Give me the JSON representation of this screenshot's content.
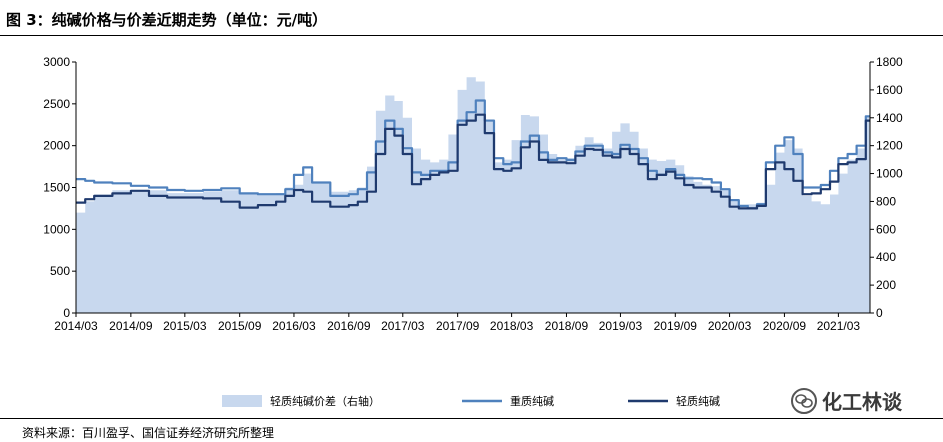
{
  "header": {
    "title": "图 3：纯碱价格与价差近期走势（单位：元/吨）"
  },
  "footer": {
    "source": "资料来源：百川盈孚、国信证券经济研究所整理"
  },
  "watermark": {
    "text": "化工林谈"
  },
  "colors": {
    "spread": "#c8d8ee",
    "heavy": "#4f81bd",
    "light": "#1f3a6e"
  },
  "chart_data": {
    "type": "line",
    "title": "纯碱价格与价差近期走势",
    "unit": "元/吨",
    "left_axis": {
      "ylim": [
        0,
        3000
      ],
      "ticks": [
        0,
        500,
        1000,
        1500,
        2000,
        2500,
        3000
      ]
    },
    "right_axis": {
      "ylim": [
        0,
        1800
      ],
      "ticks": [
        0,
        200,
        400,
        600,
        800,
        1000,
        1200,
        1400,
        1600,
        1800
      ]
    },
    "x_tick_labels": [
      "2014/03",
      "2014/09",
      "2015/03",
      "2015/09",
      "2016/03",
      "2016/09",
      "2017/03",
      "2017/09",
      "2018/03",
      "2018/09",
      "2019/03",
      "2019/09",
      "2020/03",
      "2020/09",
      "2021/03"
    ],
    "legend_position": "bottom",
    "series": [
      {
        "name": "轻质纯碱价差（右轴）",
        "kind": "area",
        "axis": "right",
        "color": "#c8d8ee",
        "x": [
          "2014-03",
          "2014-04",
          "2014-05",
          "2014-07",
          "2014-09",
          "2014-11",
          "2015-01",
          "2015-03",
          "2015-05",
          "2015-07",
          "2015-09",
          "2015-11",
          "2016-01",
          "2016-02",
          "2016-03",
          "2016-04",
          "2016-05",
          "2016-07",
          "2016-09",
          "2016-10",
          "2016-11",
          "2016-12",
          "2017-01",
          "2017-02",
          "2017-03",
          "2017-04",
          "2017-05",
          "2017-06",
          "2017-07",
          "2017-08",
          "2017-09",
          "2017-10",
          "2017-11",
          "2017-12",
          "2018-01",
          "2018-02",
          "2018-03",
          "2018-04",
          "2018-05",
          "2018-06",
          "2018-07",
          "2018-08",
          "2018-09",
          "2018-10",
          "2018-11",
          "2018-12",
          "2019-01",
          "2019-02",
          "2019-03",
          "2019-04",
          "2019-05",
          "2019-06",
          "2019-07",
          "2019-08",
          "2019-09",
          "2019-10",
          "2019-11",
          "2019-12",
          "2020-01",
          "2020-02",
          "2020-03",
          "2020-04",
          "2020-05",
          "2020-06",
          "2020-07",
          "2020-08",
          "2020-09",
          "2020-10",
          "2020-11",
          "2020-12",
          "2021-01",
          "2021-02",
          "2021-03",
          "2021-04",
          "2021-05",
          "2021-06"
        ],
        "values": [
          720,
          800,
          850,
          880,
          870,
          880,
          860,
          860,
          870,
          880,
          850,
          850,
          860,
          900,
          920,
          1000,
          940,
          870,
          880,
          900,
          1050,
          1450,
          1560,
          1520,
          1400,
          1180,
          1100,
          1080,
          1100,
          1280,
          1600,
          1690,
          1660,
          1370,
          1080,
          1100,
          1240,
          1420,
          1410,
          1280,
          1140,
          1100,
          1110,
          1200,
          1260,
          1220,
          1180,
          1300,
          1360,
          1300,
          1180,
          1100,
          1090,
          1100,
          1060,
          980,
          940,
          920,
          910,
          880,
          800,
          770,
          780,
          790,
          920,
          1150,
          1240,
          1180,
          840,
          800,
          780,
          850,
          1000,
          1100,
          1180,
          1400
        ]
      },
      {
        "name": "重质纯碱",
        "kind": "line",
        "axis": "left",
        "color": "#4f81bd",
        "x": [
          "2014-03",
          "2014-04",
          "2014-05",
          "2014-07",
          "2014-09",
          "2014-11",
          "2015-01",
          "2015-03",
          "2015-05",
          "2015-07",
          "2015-09",
          "2015-11",
          "2016-01",
          "2016-02",
          "2016-03",
          "2016-04",
          "2016-05",
          "2016-07",
          "2016-09",
          "2016-10",
          "2016-11",
          "2016-12",
          "2017-01",
          "2017-02",
          "2017-03",
          "2017-04",
          "2017-05",
          "2017-06",
          "2017-07",
          "2017-08",
          "2017-09",
          "2017-10",
          "2017-11",
          "2017-12",
          "2018-01",
          "2018-02",
          "2018-03",
          "2018-04",
          "2018-05",
          "2018-06",
          "2018-07",
          "2018-08",
          "2018-09",
          "2018-10",
          "2018-11",
          "2018-12",
          "2019-01",
          "2019-02",
          "2019-03",
          "2019-04",
          "2019-05",
          "2019-06",
          "2019-07",
          "2019-08",
          "2019-09",
          "2019-10",
          "2019-11",
          "2019-12",
          "2020-01",
          "2020-02",
          "2020-03",
          "2020-04",
          "2020-05",
          "2020-06",
          "2020-07",
          "2020-08",
          "2020-09",
          "2020-10",
          "2020-11",
          "2020-12",
          "2021-01",
          "2021-02",
          "2021-03",
          "2021-04",
          "2021-05",
          "2021-06"
        ],
        "values": [
          1600,
          1580,
          1560,
          1550,
          1520,
          1500,
          1470,
          1460,
          1470,
          1490,
          1430,
          1420,
          1420,
          1480,
          1650,
          1740,
          1560,
          1400,
          1420,
          1480,
          1680,
          2050,
          2300,
          2200,
          1970,
          1680,
          1650,
          1700,
          1700,
          1800,
          2300,
          2400,
          2540,
          2300,
          1850,
          1780,
          1800,
          2050,
          2120,
          1920,
          1830,
          1850,
          1830,
          1930,
          2000,
          2000,
          1920,
          1900,
          2010,
          1960,
          1850,
          1700,
          1650,
          1720,
          1650,
          1610,
          1610,
          1600,
          1560,
          1480,
          1350,
          1280,
          1250,
          1300,
          1800,
          2000,
          2100,
          1900,
          1500,
          1500,
          1530,
          1700,
          1850,
          1900,
          2000,
          2350
        ]
      },
      {
        "name": "轻质纯碱",
        "kind": "line",
        "axis": "left",
        "color": "#1f3a6e",
        "x": [
          "2014-03",
          "2014-04",
          "2014-05",
          "2014-07",
          "2014-09",
          "2014-11",
          "2015-01",
          "2015-03",
          "2015-05",
          "2015-07",
          "2015-09",
          "2015-11",
          "2016-01",
          "2016-02",
          "2016-03",
          "2016-04",
          "2016-05",
          "2016-07",
          "2016-09",
          "2016-10",
          "2016-11",
          "2016-12",
          "2017-01",
          "2017-02",
          "2017-03",
          "2017-04",
          "2017-05",
          "2017-06",
          "2017-07",
          "2017-08",
          "2017-09",
          "2017-10",
          "2017-11",
          "2017-12",
          "2018-01",
          "2018-02",
          "2018-03",
          "2018-04",
          "2018-05",
          "2018-06",
          "2018-07",
          "2018-08",
          "2018-09",
          "2018-10",
          "2018-11",
          "2018-12",
          "2019-01",
          "2019-02",
          "2019-03",
          "2019-04",
          "2019-05",
          "2019-06",
          "2019-07",
          "2019-08",
          "2019-09",
          "2019-10",
          "2019-11",
          "2019-12",
          "2020-01",
          "2020-02",
          "2020-03",
          "2020-04",
          "2020-05",
          "2020-06",
          "2020-07",
          "2020-08",
          "2020-09",
          "2020-10",
          "2020-11",
          "2020-12",
          "2021-01",
          "2021-02",
          "2021-03",
          "2021-04",
          "2021-05",
          "2021-06"
        ],
        "values": [
          1320,
          1360,
          1400,
          1430,
          1460,
          1400,
          1380,
          1380,
          1370,
          1330,
          1260,
          1290,
          1330,
          1400,
          1470,
          1450,
          1330,
          1270,
          1290,
          1330,
          1450,
          1900,
          2200,
          2120,
          1900,
          1540,
          1600,
          1650,
          1680,
          1700,
          2250,
          2300,
          2370,
          2150,
          1720,
          1700,
          1730,
          1980,
          2050,
          1830,
          1800,
          1800,
          1790,
          1880,
          1960,
          1950,
          1880,
          1860,
          1960,
          1900,
          1780,
          1600,
          1650,
          1690,
          1610,
          1530,
          1500,
          1500,
          1450,
          1390,
          1270,
          1250,
          1250,
          1280,
          1720,
          1800,
          1720,
          1580,
          1420,
          1430,
          1480,
          1570,
          1780,
          1800,
          1840,
          2300
        ]
      }
    ]
  }
}
